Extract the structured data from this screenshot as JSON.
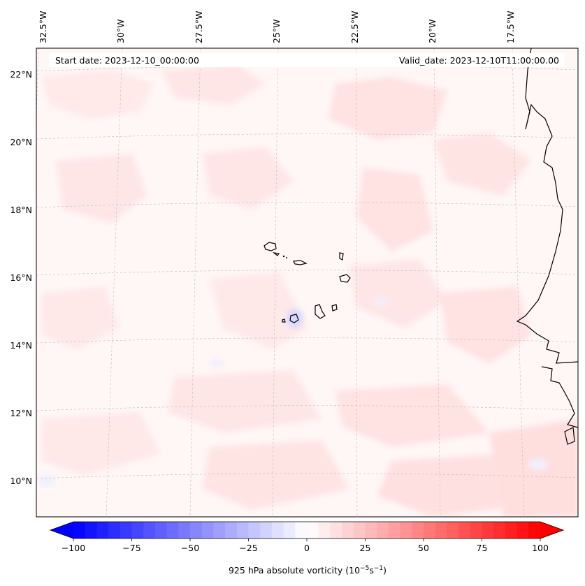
{
  "header": {
    "start_date": "Start date: 2023-12-10_00:00:00",
    "valid_date": "Valid_date: 2023-12-10T11:00:00.00"
  },
  "map": {
    "longitude_labels": [
      "32.5°W",
      "30°W",
      "27.5°W",
      "25°W",
      "22.5°W",
      "20°W",
      "17.5°W"
    ],
    "latitude_labels": [
      "22°N",
      "20°N",
      "18°N",
      "16°N",
      "14°N",
      "12°N",
      "10°N"
    ],
    "features": [
      "Cape Verde islands",
      "West African coastline"
    ]
  },
  "colorbar": {
    "label": "925 hPa absolute vorticity (10",
    "label_exp1": "−5",
    "label_mid": "s",
    "label_exp2": "−1",
    "label_end": ")",
    "tick_labels": [
      "−100",
      "−75",
      "−50",
      "−25",
      "0",
      "25",
      "50",
      "75",
      "100"
    ],
    "min": -100,
    "max": 100,
    "step": 5,
    "extend": "both",
    "cmap": "bwr",
    "low_color": "#0000ff",
    "mid_color": "#ffffff",
    "high_color": "#ff0000"
  },
  "colors": {
    "background_field": "#fff6f6",
    "coastline": "#000000",
    "gridline": "#bbbbbb"
  }
}
